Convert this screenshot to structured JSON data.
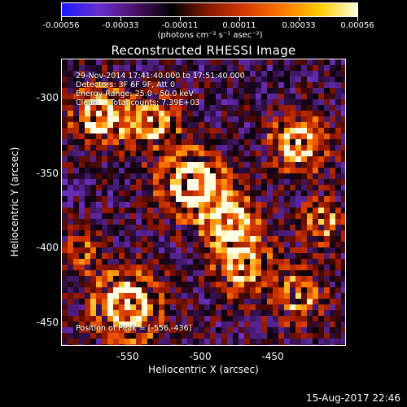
{
  "colorbar": {
    "ticks": [
      "-0.00056",
      "-0.00033",
      "-0.00011",
      "0.00011",
      "0.00033",
      "0.00056"
    ],
    "unit": "(photons cm⁻² s⁻¹ asec⁻²)",
    "stops": [
      "#1a1aff",
      "#6a2fd0",
      "#4a1066",
      "#000000",
      "#8a1a00",
      "#d93a00",
      "#ff7a00",
      "#ffcc00",
      "#ffffe0"
    ]
  },
  "title": "Reconstructed RHESSI Image",
  "info": {
    "line1": "29-Nov-2014 17:41:40.000 to 17:51:40.000",
    "line2": "Detectors: 3F 6F 9F, Att 0",
    "line3": "Energy Range: 25.0 - 50.0 keV",
    "line4": "Clean     Total counts: 7.39E+03"
  },
  "peak": "Position of Peak = [-556,-436]",
  "axes": {
    "xlabel": "Heliocentric X (arcsec)",
    "ylabel": "Heliocentric Y (arcsec)",
    "xticks": [
      "-550",
      "-500",
      "-450"
    ],
    "yticks": [
      "-300",
      "-350",
      "-400",
      "-450"
    ]
  },
  "datestamp": "15-Aug-2017 22:46"
}
